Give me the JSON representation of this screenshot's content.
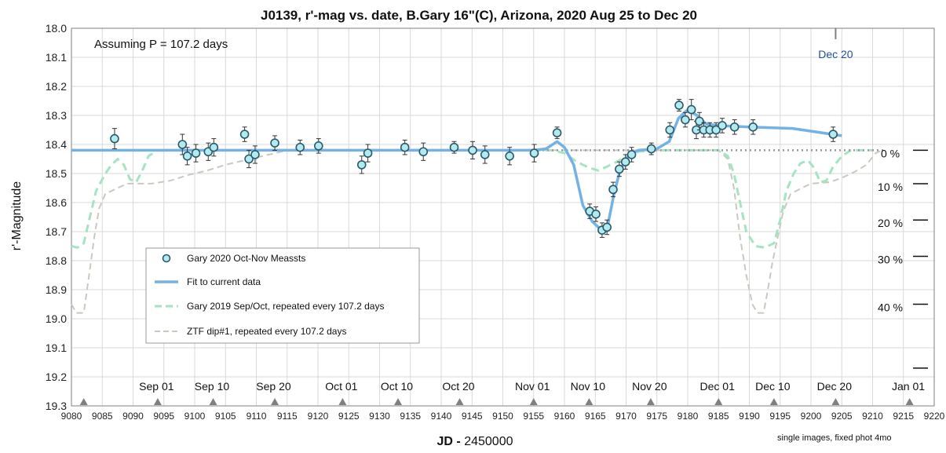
{
  "chart_data": {
    "type": "scatter",
    "title": "J0139, r'-mag vs. date, B.Gary 16\"(C), Arizona, 2020 Aug 25 to Dec 20",
    "xlabel_bold": "JD -",
    "xlabel_rest": " 2450000",
    "ylabel": "r'-Magnitude",
    "xlim": [
      9080,
      9220
    ],
    "ylim": [
      18.0,
      19.3
    ],
    "y_inverted": true,
    "grid": true,
    "x_ticks": [
      9080,
      9085,
      9090,
      9095,
      9100,
      9105,
      9110,
      9115,
      9120,
      9125,
      9130,
      9135,
      9140,
      9145,
      9150,
      9155,
      9160,
      9165,
      9170,
      9175,
      9180,
      9185,
      9190,
      9195,
      9200,
      9205,
      9210,
      9215,
      9220
    ],
    "y_ticks": [
      "18.0",
      "18.1",
      "18.2",
      "18.3",
      "18.4",
      "18.5",
      "18.6",
      "18.7",
      "18.8",
      "18.9",
      "19.0",
      "19.1",
      "19.2",
      "19.3"
    ],
    "month_labels": [
      {
        "label": "Sep 01",
        "x": 9093.8
      },
      {
        "label": "Sep 10",
        "x": 9102.8
      },
      {
        "label": "Sep 20",
        "x": 9112.8
      },
      {
        "label": "Oct 01",
        "x": 9123.8
      },
      {
        "label": "Oct 10",
        "x": 9132.8
      },
      {
        "label": "Oct 20",
        "x": 9142.8
      },
      {
        "label": "Nov 01",
        "x": 9154.8
      },
      {
        "label": "Nov 10",
        "x": 9163.8
      },
      {
        "label": "Nov 20",
        "x": 9173.8
      },
      {
        "label": "Dec 01",
        "x": 9184.8
      },
      {
        "label": "Dec 10",
        "x": 9193.8
      },
      {
        "label": "Dec 20",
        "x": 9203.8
      },
      {
        "label": "Jan 01",
        "x": 9215.8
      }
    ],
    "date_markers": [
      9082,
      9094,
      9103,
      9113,
      9124,
      9133,
      9143,
      9155,
      9164,
      9174,
      9185,
      9194,
      9204,
      9216
    ],
    "annotation": "Assuming P =  107.2 days",
    "dec20_label": "Dec 20",
    "dec20_marker_x": 9204,
    "percent_scale": [
      {
        "label": "0 %",
        "y": 18.42
      },
      {
        "label": "10 %",
        "y": 18.535
      },
      {
        "label": "20 %",
        "y": 18.66
      },
      {
        "label": "30 %",
        "y": 18.785
      },
      {
        "label": "40 %",
        "y": 18.95
      },
      {
        "label": "",
        "y": 19.17
      }
    ],
    "footnote": "single images, fixed phot   4mo",
    "legend": {
      "placement": "center-left",
      "entries": [
        {
          "name": "Gary 2020 Oct-Nov Meassts",
          "style": "marker"
        },
        {
          "name": "Fit to current data",
          "style": "solid"
        },
        {
          "name": "Gary 2019 Sep/Oct, repeated every 107.2 days",
          "style": "dashed-green"
        },
        {
          "name": "ZTF dip#1, repeated every 107.2 days",
          "style": "dashed-gray"
        }
      ]
    },
    "measurements": [
      [
        9087,
        18.38,
        0.035
      ],
      [
        9098,
        18.4,
        0.035
      ],
      [
        9098.8,
        18.44,
        0.03
      ],
      [
        9100.2,
        18.43,
        0.03
      ],
      [
        9102.2,
        18.425,
        0.03
      ],
      [
        9103.1,
        18.41,
        0.03
      ],
      [
        9108.1,
        18.365,
        0.025
      ],
      [
        9108.8,
        18.45,
        0.03
      ],
      [
        9109.8,
        18.435,
        0.03
      ],
      [
        9113,
        18.395,
        0.025
      ],
      [
        9117.1,
        18.41,
        0.025
      ],
      [
        9120.1,
        18.405,
        0.025
      ],
      [
        9127.1,
        18.47,
        0.03
      ],
      [
        9128.1,
        18.43,
        0.03
      ],
      [
        9134.1,
        18.41,
        0.025
      ],
      [
        9137.1,
        18.425,
        0.03
      ],
      [
        9142.1,
        18.41,
        0.02
      ],
      [
        9145.1,
        18.42,
        0.03
      ],
      [
        9147.1,
        18.435,
        0.03
      ],
      [
        9151.1,
        18.44,
        0.03
      ],
      [
        9155.1,
        18.43,
        0.03
      ],
      [
        9158.8,
        18.36,
        0.02
      ],
      [
        9164.1,
        18.63,
        0.025
      ],
      [
        9165.1,
        18.64,
        0.025
      ],
      [
        9166.1,
        18.695,
        0.025
      ],
      [
        9166.9,
        18.685,
        0.025
      ],
      [
        9167.9,
        18.555,
        0.025
      ],
      [
        9168.9,
        18.485,
        0.025
      ],
      [
        9169.9,
        18.46,
        0.025
      ],
      [
        9170.9,
        18.435,
        0.025
      ],
      [
        9174.1,
        18.415,
        0.02
      ],
      [
        9177.1,
        18.35,
        0.025
      ],
      [
        9178.6,
        18.265,
        0.02
      ],
      [
        9179.6,
        18.315,
        0.025
      ],
      [
        9180.6,
        18.28,
        0.035
      ],
      [
        9181.4,
        18.35,
        0.03
      ],
      [
        9181.9,
        18.32,
        0.03
      ],
      [
        9182.6,
        18.35,
        0.025
      ],
      [
        9183.6,
        18.35,
        0.025
      ],
      [
        9184.6,
        18.35,
        0.025
      ],
      [
        9185.6,
        18.335,
        0.025
      ],
      [
        9187.6,
        18.34,
        0.025
      ],
      [
        9190.6,
        18.34,
        0.025
      ],
      [
        9203.6,
        18.365,
        0.025
      ]
    ],
    "fit_curve": [
      [
        9080,
        18.42
      ],
      [
        9155,
        18.42
      ],
      [
        9157,
        18.415
      ],
      [
        9158.8,
        18.39
      ],
      [
        9160,
        18.41
      ],
      [
        9161.5,
        18.47
      ],
      [
        9163,
        18.61
      ],
      [
        9164.5,
        18.665
      ],
      [
        9166,
        18.695
      ],
      [
        9167,
        18.68
      ],
      [
        9168,
        18.575
      ],
      [
        9169,
        18.49
      ],
      [
        9170.5,
        18.435
      ],
      [
        9172,
        18.42
      ],
      [
        9175,
        18.415
      ],
      [
        9177,
        18.39
      ],
      [
        9178.5,
        18.31
      ],
      [
        9180,
        18.28
      ],
      [
        9181.5,
        18.3
      ],
      [
        9183,
        18.33
      ],
      [
        9185,
        18.335
      ],
      [
        9190,
        18.34
      ],
      [
        9197,
        18.345
      ],
      [
        9205,
        18.37
      ]
    ],
    "gary2019_repeat": [
      [
        9080,
        18.75
      ],
      [
        9081,
        18.755
      ],
      [
        9082,
        18.74
      ],
      [
        9083,
        18.65
      ],
      [
        9084,
        18.56
      ],
      [
        9085.5,
        18.5
      ],
      [
        9086.5,
        18.47
      ],
      [
        9087.5,
        18.45
      ],
      [
        9088.5,
        18.47
      ],
      [
        9089.5,
        18.52
      ],
      [
        9090.5,
        18.53
      ],
      [
        9091.5,
        18.49
      ],
      [
        9092.5,
        18.44
      ],
      [
        9094,
        18.42
      ],
      [
        9155,
        18.42
      ],
      [
        9158,
        18.42
      ],
      [
        9160,
        18.43
      ],
      [
        9162,
        18.46
      ],
      [
        9164,
        18.48
      ],
      [
        9165.5,
        18.49
      ],
      [
        9167,
        18.475
      ],
      [
        9168.5,
        18.46
      ],
      [
        9170,
        18.44
      ],
      [
        9172,
        18.425
      ],
      [
        9174,
        18.42
      ],
      [
        9185,
        18.42
      ],
      [
        9186.5,
        18.44
      ],
      [
        9187.5,
        18.5
      ],
      [
        9188.5,
        18.6
      ],
      [
        9189.5,
        18.7
      ],
      [
        9191,
        18.75
      ],
      [
        9192.5,
        18.755
      ],
      [
        9194,
        18.74
      ],
      [
        9195,
        18.66
      ],
      [
        9196,
        18.56
      ],
      [
        9197.2,
        18.5
      ],
      [
        9198.3,
        18.465
      ],
      [
        9199.5,
        18.455
      ],
      [
        9200.5,
        18.48
      ],
      [
        9201.5,
        18.53
      ],
      [
        9202.5,
        18.525
      ],
      [
        9203.5,
        18.48
      ],
      [
        9205,
        18.44
      ],
      [
        9206.5,
        18.42
      ],
      [
        9210,
        18.42
      ]
    ],
    "ztf_repeat": [
      [
        9080,
        18.95
      ],
      [
        9080.8,
        18.98
      ],
      [
        9082,
        18.98
      ],
      [
        9083,
        18.83
      ],
      [
        9083.7,
        18.72
      ],
      [
        9084.5,
        18.62
      ],
      [
        9085.5,
        18.57
      ],
      [
        9087.5,
        18.55
      ],
      [
        9089,
        18.535
      ],
      [
        9093,
        18.535
      ],
      [
        9096,
        18.525
      ],
      [
        9099,
        18.505
      ],
      [
        9102,
        18.49
      ],
      [
        9105,
        18.47
      ],
      [
        9108,
        18.455
      ],
      [
        9111,
        18.44
      ],
      [
        9114,
        18.425
      ],
      [
        9116,
        18.42
      ],
      [
        9185,
        18.42
      ],
      [
        9186.5,
        18.45
      ],
      [
        9187.5,
        18.55
      ],
      [
        9188.5,
        18.72
      ],
      [
        9189.5,
        18.85
      ],
      [
        9190.5,
        18.95
      ],
      [
        9191.3,
        18.98
      ],
      [
        9192.3,
        18.98
      ],
      [
        9193,
        18.9
      ],
      [
        9193.8,
        18.8
      ],
      [
        9194.6,
        18.72
      ],
      [
        9195.5,
        18.63
      ],
      [
        9196.7,
        18.57
      ],
      [
        9198.5,
        18.55
      ],
      [
        9200,
        18.535
      ],
      [
        9203,
        18.53
      ],
      [
        9205,
        18.515
      ],
      [
        9207,
        18.495
      ],
      [
        9209,
        18.47
      ],
      [
        9210.5,
        18.43
      ],
      [
        9211.5,
        18.42
      ]
    ],
    "baseline_dotted_y": 18.42,
    "colors": {
      "marker_fill": "#b3eaf0",
      "marker_edge": "#2a5a6a",
      "fit_line": "#74b2e6",
      "gary2019_line": "#a6e3c3",
      "ztf_line": "#c9c9c0",
      "dotted_baseline": "#999999",
      "grid": "#d9d9d9",
      "triangle": "#808080",
      "dec20_text": "#1f4e9a"
    }
  }
}
